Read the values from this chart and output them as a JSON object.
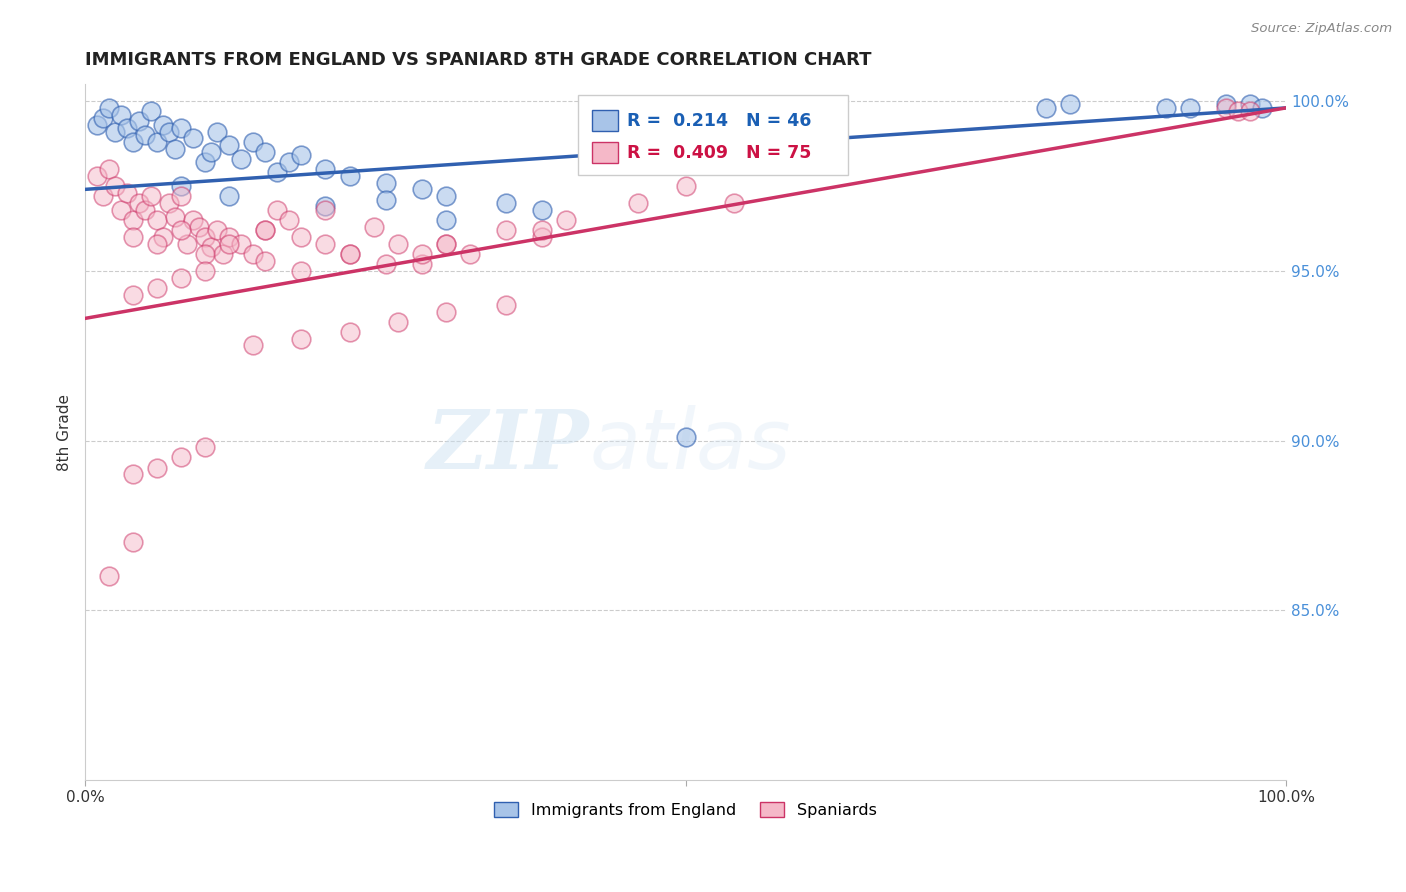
{
  "title": "IMMIGRANTS FROM ENGLAND VS SPANIARD 8TH GRADE CORRELATION CHART",
  "source": "Source: ZipAtlas.com",
  "ylabel": "8th Grade",
  "blue_R": 0.214,
  "blue_N": 46,
  "pink_R": 0.409,
  "pink_N": 75,
  "blue_color": "#a8c4e8",
  "pink_color": "#f5b8c8",
  "blue_line_color": "#3060b0",
  "pink_line_color": "#cc3366",
  "legend_label_blue": "Immigrants from England",
  "legend_label_pink": "Spaniards",
  "blue_x": [
    0.01,
    0.015,
    0.02,
    0.025,
    0.03,
    0.035,
    0.04,
    0.045,
    0.05,
    0.055,
    0.06,
    0.065,
    0.07,
    0.075,
    0.08,
    0.09,
    0.1,
    0.105,
    0.11,
    0.12,
    0.13,
    0.14,
    0.15,
    0.16,
    0.17,
    0.18,
    0.2,
    0.22,
    0.25,
    0.28,
    0.3,
    0.35,
    0.38,
    0.3,
    0.25,
    0.2,
    0.5,
    0.8,
    0.82,
    0.9,
    0.92,
    0.95,
    0.97,
    0.98,
    0.08,
    0.12
  ],
  "blue_y": [
    0.993,
    0.995,
    0.998,
    0.991,
    0.996,
    0.992,
    0.988,
    0.994,
    0.99,
    0.997,
    0.988,
    0.993,
    0.991,
    0.986,
    0.992,
    0.989,
    0.982,
    0.985,
    0.991,
    0.987,
    0.983,
    0.988,
    0.985,
    0.979,
    0.982,
    0.984,
    0.98,
    0.978,
    0.976,
    0.974,
    0.972,
    0.97,
    0.968,
    0.965,
    0.971,
    0.969,
    0.901,
    0.998,
    0.999,
    0.998,
    0.998,
    0.999,
    0.999,
    0.998,
    0.975,
    0.972
  ],
  "pink_x": [
    0.01,
    0.015,
    0.02,
    0.025,
    0.03,
    0.035,
    0.04,
    0.045,
    0.05,
    0.055,
    0.06,
    0.065,
    0.07,
    0.075,
    0.08,
    0.085,
    0.09,
    0.095,
    0.1,
    0.105,
    0.11,
    0.115,
    0.12,
    0.13,
    0.14,
    0.15,
    0.16,
    0.17,
    0.18,
    0.2,
    0.22,
    0.24,
    0.26,
    0.28,
    0.3,
    0.32,
    0.35,
    0.38,
    0.2,
    0.15,
    0.12,
    0.1,
    0.08,
    0.06,
    0.04,
    0.5,
    0.54,
    0.46,
    0.4,
    0.38,
    0.3,
    0.28,
    0.25,
    0.22,
    0.18,
    0.15,
    0.1,
    0.08,
    0.06,
    0.04,
    0.35,
    0.3,
    0.26,
    0.22,
    0.18,
    0.14,
    0.1,
    0.08,
    0.06,
    0.04,
    0.95,
    0.96,
    0.97,
    0.04,
    0.02
  ],
  "pink_y": [
    0.978,
    0.972,
    0.98,
    0.975,
    0.968,
    0.973,
    0.965,
    0.97,
    0.968,
    0.972,
    0.965,
    0.96,
    0.97,
    0.966,
    0.972,
    0.958,
    0.965,
    0.963,
    0.96,
    0.957,
    0.962,
    0.955,
    0.96,
    0.958,
    0.955,
    0.962,
    0.968,
    0.965,
    0.96,
    0.958,
    0.955,
    0.963,
    0.958,
    0.952,
    0.958,
    0.955,
    0.962,
    0.96,
    0.968,
    0.962,
    0.958,
    0.955,
    0.962,
    0.958,
    0.96,
    0.975,
    0.97,
    0.97,
    0.965,
    0.962,
    0.958,
    0.955,
    0.952,
    0.955,
    0.95,
    0.953,
    0.95,
    0.948,
    0.945,
    0.943,
    0.94,
    0.938,
    0.935,
    0.932,
    0.93,
    0.928,
    0.898,
    0.895,
    0.892,
    0.89,
    0.998,
    0.997,
    0.997,
    0.87,
    0.86
  ],
  "watermark_zip": "ZIP",
  "watermark_atlas": "atlas",
  "background_color": "#ffffff",
  "xlim": [
    0.0,
    1.0
  ],
  "ylim": [
    0.8,
    1.005
  ],
  "grid_lines": [
    0.85,
    0.9,
    0.95,
    1.0
  ]
}
